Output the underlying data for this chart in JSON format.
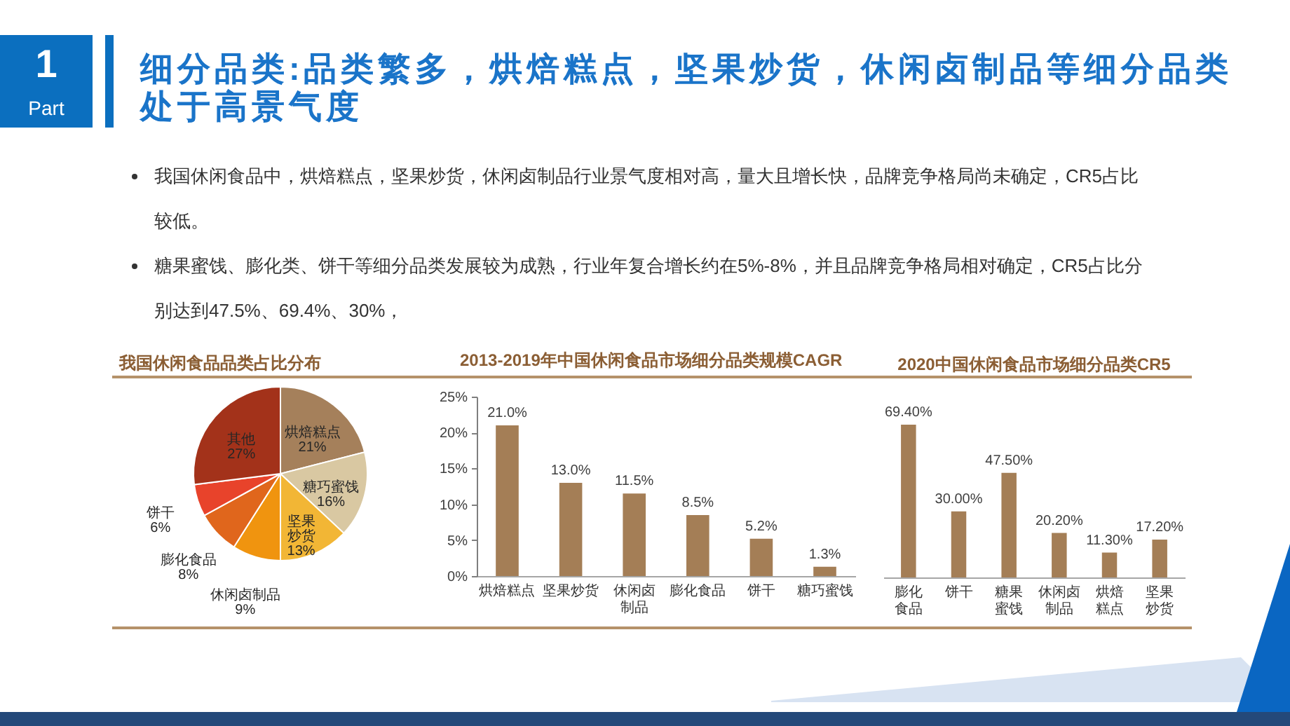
{
  "chart_data": [
    {
      "type": "other",
      "title": "细分品类:品类繁多，烘焙糕点，坚果炒货，休闲卤制品等细分品类处于高景气度",
      "annotations": [
        "1",
        "Part",
        "我国休闲食品中，烘焙糕点，坚果炒货，休闲卤制品行业景气度相对高，量大且增长快，品牌竞争格局尚未确定，CR5占比较低。",
        "糖果蜜饯、膨化类、饼干等细分品类发展较为成熟，行业年复合增长约在5%-8%，并且品牌竞争格局相对确定，CR5占比分别达到47.5%、69.4%、30%，"
      ]
    },
    {
      "type": "pie",
      "title": "我国休闲食品品类占比分布",
      "categories": [
        "烘焙糕点",
        "糖巧蜜饯",
        "坚果炒货",
        "休闲卤制品",
        "膨化食品",
        "饼干",
        "其他"
      ],
      "values": [
        21,
        16,
        13,
        9,
        8,
        6,
        27
      ],
      "colors": [
        "#a5805b",
        "#d9c8a2",
        "#f2b635",
        "#f0940f",
        "#e0661c",
        "#e8432b",
        "#a3321a"
      ],
      "value_labels": [
        "21%",
        "16%",
        "13%",
        "9%",
        "8%",
        "6%",
        "27%"
      ]
    },
    {
      "type": "bar",
      "title": "2013-2019年中国休闲食品市场细分品类规模CAGR",
      "categories": [
        "烘焙糕点",
        "坚果炒货",
        "休闲卤制品",
        "膨化食品",
        "饼干",
        "糖巧蜜饯"
      ],
      "values": [
        21.0,
        13.0,
        11.5,
        8.5,
        5.2,
        1.3
      ],
      "color": "#a47e56",
      "ylim": [
        0,
        25
      ],
      "yticks": [
        {
          "value": 0,
          "label": "0%"
        },
        {
          "value": 5,
          "label": "5%"
        },
        {
          "value": 10,
          "label": "10%"
        },
        {
          "value": 15,
          "label": "15%"
        },
        {
          "value": 20,
          "label": "20%"
        },
        {
          "value": 25,
          "label": "25%"
        }
      ],
      "value_labels": [
        "21.0%",
        "13.0%",
        "11.5%",
        "8.5%",
        "5.2%",
        "1.3%"
      ]
    },
    {
      "type": "bar",
      "title": "2020中国休闲食品市场细分品类CR5",
      "categories": [
        "膨化食品",
        "饼干",
        "糖果蜜饯",
        "休闲卤制品",
        "烘焙糕点",
        "坚果炒货"
      ],
      "values": [
        69.4,
        30.0,
        47.5,
        20.2,
        11.3,
        17.2
      ],
      "color": "#a47e56",
      "value_labels": [
        "69.40%",
        "30.00%",
        "47.50%",
        "20.20%",
        "11.30%",
        "17.20%"
      ]
    }
  ]
}
